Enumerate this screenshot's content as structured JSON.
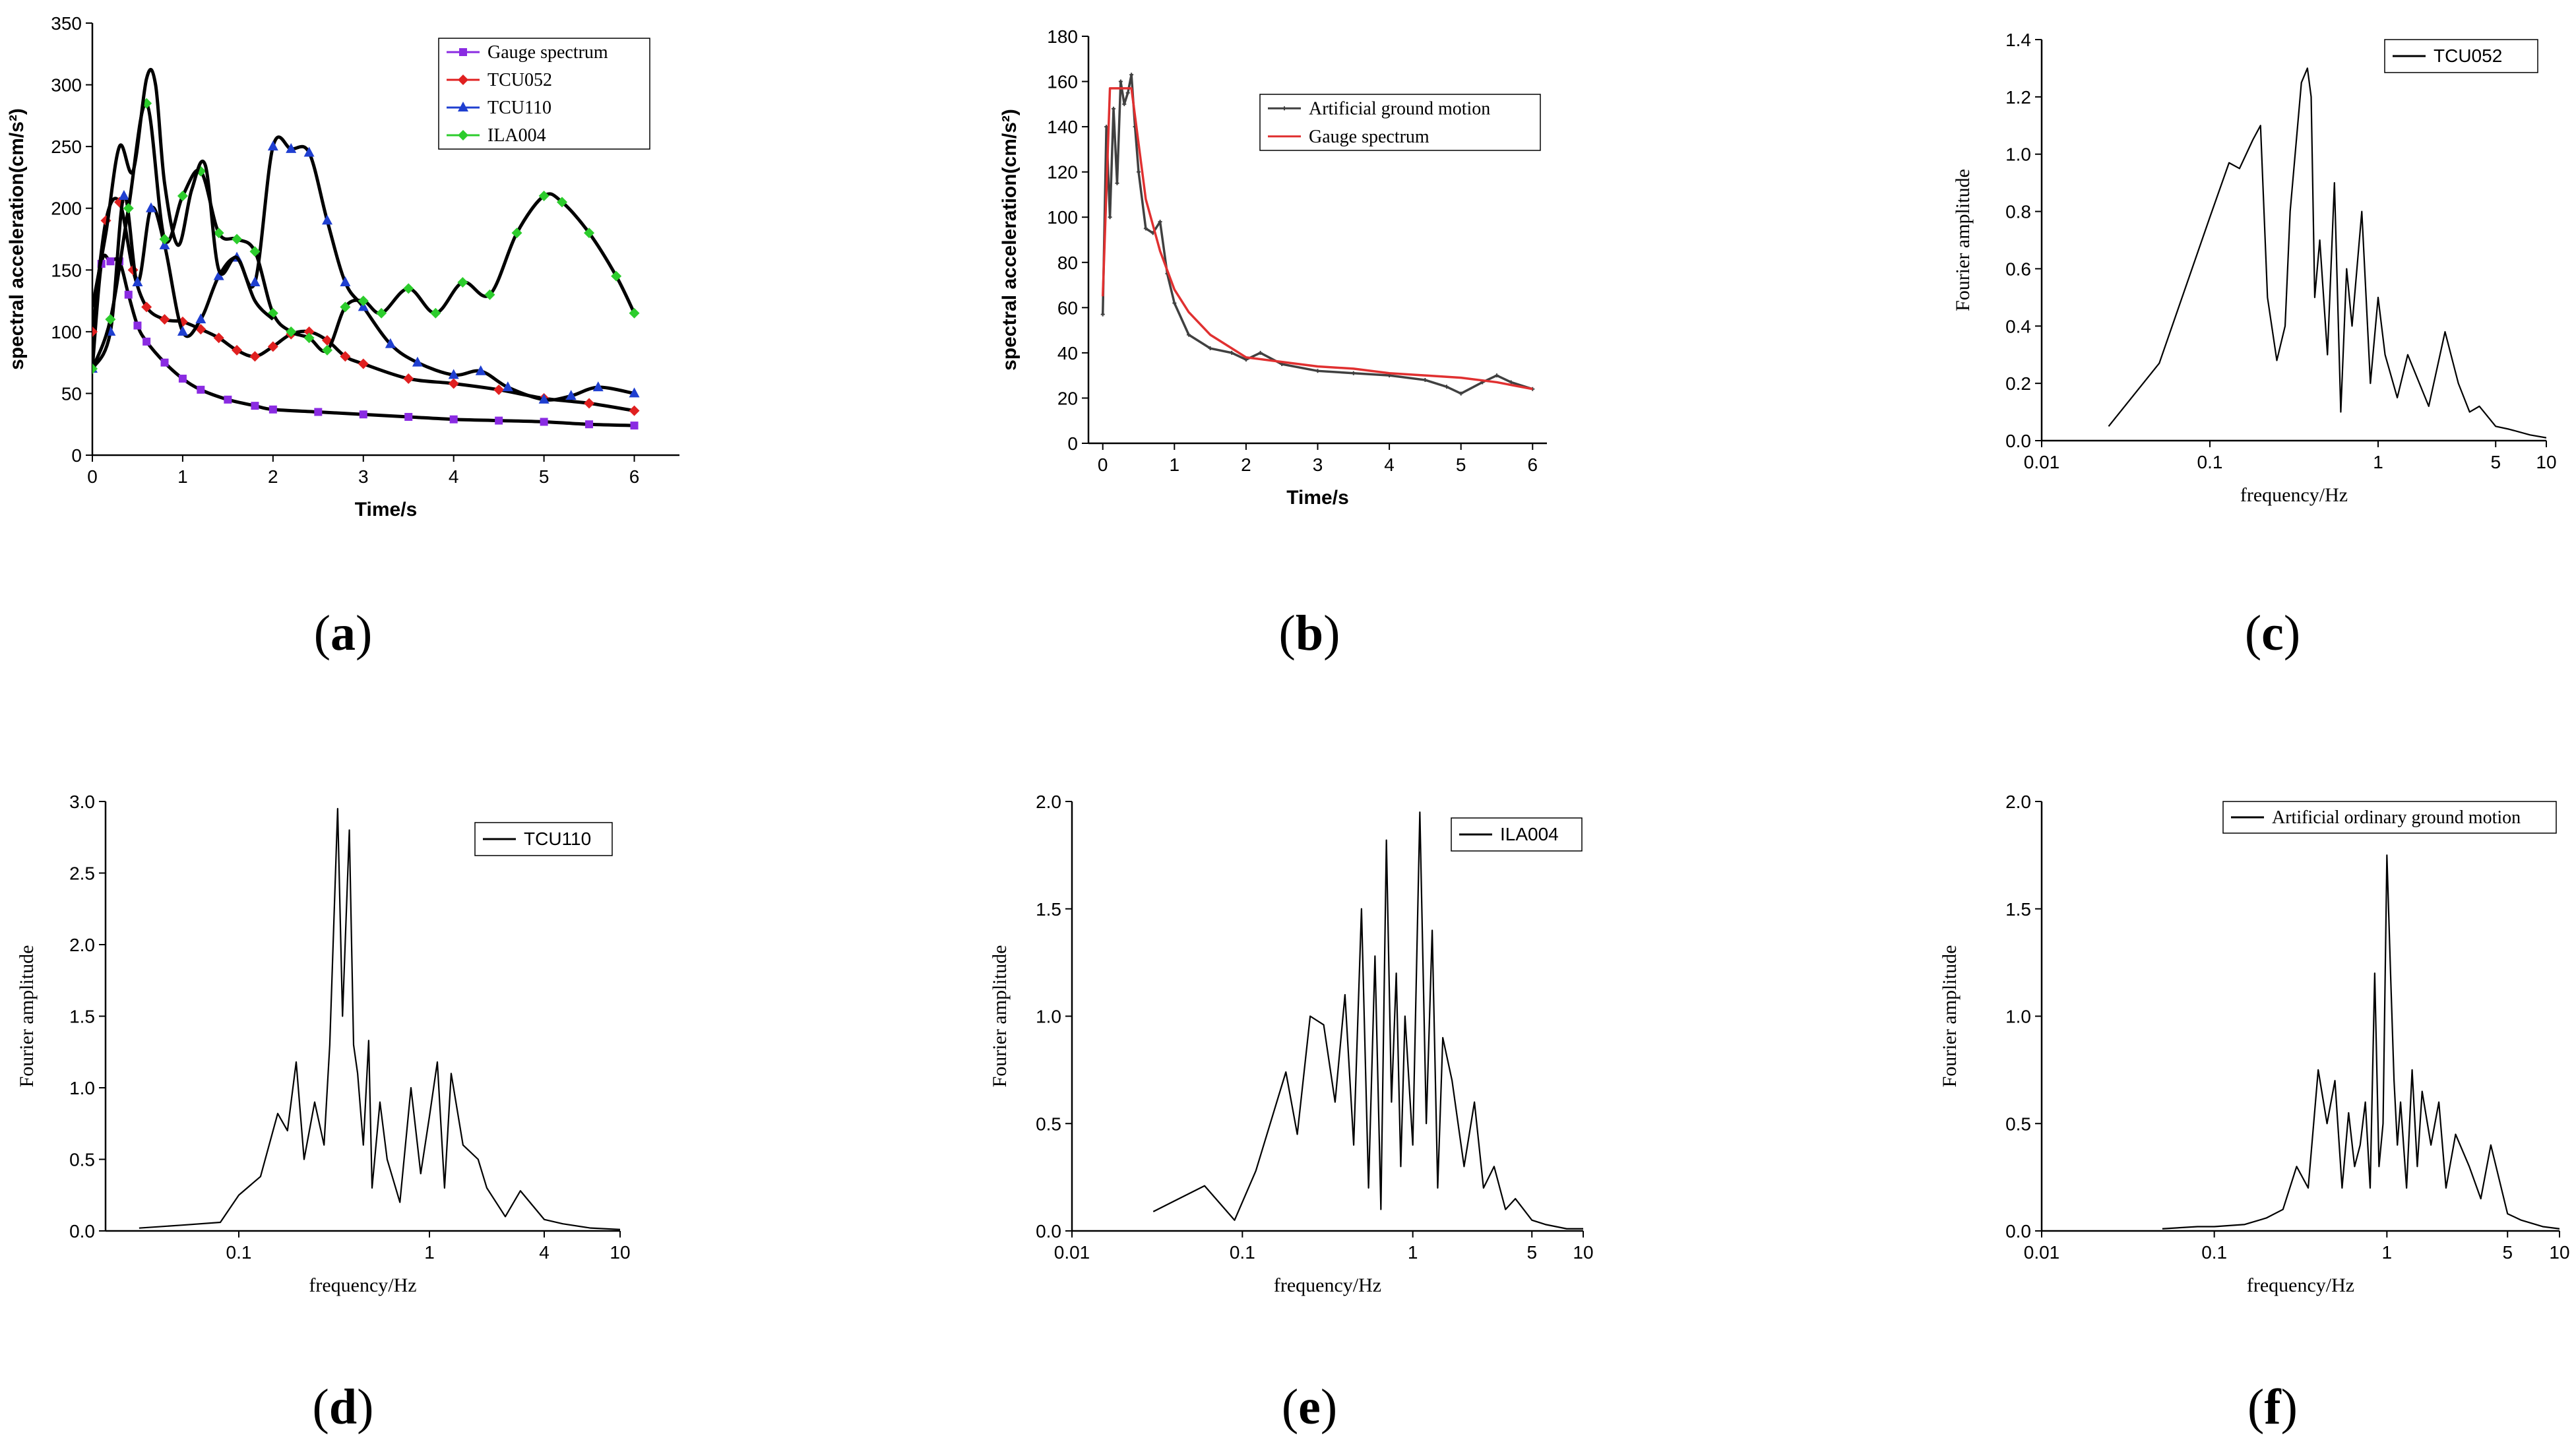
{
  "figure": {
    "panel_labels": [
      {
        "open": "(",
        "letter": "a",
        "close": ")"
      },
      {
        "open": "(",
        "letter": "b",
        "close": ")"
      },
      {
        "open": "(",
        "letter": "c",
        "close": ")"
      },
      {
        "open": "(",
        "letter": "d",
        "close": ")"
      },
      {
        "open": "(",
        "letter": "e",
        "close": ")"
      },
      {
        "open": "(",
        "letter": "f",
        "close": ")"
      }
    ]
  },
  "chart_data": [
    {
      "id": "a",
      "type": "line",
      "xlabel": "Time/s",
      "ylabel": "spectral acceleration(cm/s²)",
      "xlim": [
        0,
        6.5
      ],
      "ylim": [
        0,
        350
      ],
      "xticks": [
        0,
        1,
        2,
        3,
        4,
        5,
        6
      ],
      "yticks": [
        0,
        50,
        100,
        150,
        200,
        250,
        300,
        350
      ],
      "legend_position": "top-right",
      "series": [
        {
          "name": "Gauge spectrum",
          "color": "#8a2be2",
          "marker": "square",
          "x": [
            0,
            0.1,
            0.2,
            0.3,
            0.4,
            0.5,
            0.6,
            0.8,
            1,
            1.2,
            1.5,
            1.8,
            2,
            2.5,
            3,
            3.5,
            4,
            4.5,
            5,
            5.5,
            6
          ],
          "y": [
            70,
            155,
            157,
            157,
            130,
            105,
            92,
            75,
            62,
            53,
            45,
            40,
            37,
            35,
            33,
            31,
            29,
            28,
            27,
            25,
            24
          ]
        },
        {
          "name": "TCU052",
          "color": "#e02020",
          "marker": "diamond",
          "x": [
            0,
            0.15,
            0.3,
            0.45,
            0.6,
            0.8,
            1,
            1.2,
            1.4,
            1.6,
            1.8,
            2,
            2.2,
            2.4,
            2.6,
            2.8,
            3,
            3.5,
            4,
            4.5,
            5,
            5.5,
            6
          ],
          "y": [
            100,
            190,
            205,
            150,
            120,
            110,
            108,
            102,
            95,
            85,
            80,
            88,
            98,
            100,
            93,
            80,
            74,
            62,
            58,
            53,
            46,
            42,
            36
          ]
        },
        {
          "name": "TCU110",
          "color": "#1f3fd0",
          "marker": "triangle",
          "x": [
            0,
            0.2,
            0.35,
            0.5,
            0.65,
            0.8,
            1,
            1.2,
            1.4,
            1.6,
            1.8,
            2,
            2.2,
            2.4,
            2.6,
            2.8,
            3,
            3.3,
            3.6,
            4,
            4.3,
            4.6,
            5,
            5.3,
            5.6,
            6
          ],
          "y": [
            70,
            100,
            210,
            140,
            200,
            170,
            100,
            110,
            145,
            160,
            140,
            250,
            248,
            245,
            190,
            140,
            120,
            90,
            75,
            65,
            68,
            55,
            45,
            48,
            55,
            50
          ]
        },
        {
          "name": "ILA004",
          "color": "#2ccc2c",
          "marker": "diamond",
          "x": [
            0,
            0.2,
            0.4,
            0.6,
            0.8,
            1,
            1.2,
            1.4,
            1.6,
            1.8,
            2,
            2.2,
            2.4,
            2.6,
            2.8,
            3,
            3.2,
            3.5,
            3.8,
            4.1,
            4.4,
            4.7,
            5,
            5.2,
            5.5,
            5.8,
            6
          ],
          "y": [
            70,
            110,
            200,
            285,
            175,
            210,
            230,
            180,
            175,
            165,
            115,
            100,
            95,
            85,
            120,
            125,
            115,
            135,
            115,
            140,
            130,
            180,
            210,
            205,
            180,
            145,
            115
          ]
        },
        {
          "name": "",
          "color": "#000000",
          "marker": "none",
          "x": [
            0,
            0.15,
            0.3,
            0.45,
            0.6,
            0.7,
            0.8,
            0.95,
            1.1,
            1.25,
            1.4,
            1.6,
            1.8,
            2
          ],
          "y": [
            120,
            180,
            250,
            230,
            305,
            300,
            220,
            170,
            215,
            235,
            150,
            160,
            125,
            110
          ]
        }
      ]
    },
    {
      "id": "b",
      "type": "line",
      "xlabel": "Time/s",
      "ylabel": "spectral acceleration(cm/s²)",
      "xlim": [
        -0.2,
        6.2
      ],
      "ylim": [
        0,
        180
      ],
      "xticks": [
        0,
        1,
        2,
        3,
        4,
        5,
        6
      ],
      "yticks": [
        0,
        20,
        40,
        60,
        80,
        100,
        120,
        140,
        160,
        180
      ],
      "legend_position": "top-right",
      "series": [
        {
          "name": "Artificial ground motion",
          "color": "#404040",
          "marker": "small-cross",
          "x": [
            0,
            0.05,
            0.1,
            0.15,
            0.2,
            0.25,
            0.3,
            0.35,
            0.4,
            0.45,
            0.5,
            0.6,
            0.7,
            0.8,
            0.9,
            1,
            1.2,
            1.5,
            1.8,
            2,
            2.2,
            2.5,
            3,
            3.5,
            4,
            4.5,
            4.8,
            5,
            5.3,
            5.5,
            5.7,
            6
          ],
          "y": [
            57,
            140,
            100,
            148,
            115,
            160,
            150,
            155,
            163,
            140,
            120,
            95,
            93,
            98,
            75,
            62,
            48,
            42,
            40,
            37,
            40,
            35,
            32,
            31,
            30,
            28,
            25,
            22,
            27,
            30,
            27,
            24
          ]
        },
        {
          "name": "Gauge spectrum",
          "color": "#e03030",
          "marker": "none",
          "x": [
            0,
            0.1,
            0.4,
            0.6,
            0.8,
            1,
            1.2,
            1.5,
            1.8,
            2,
            2.5,
            3,
            3.5,
            4,
            4.5,
            5,
            5.5,
            6
          ],
          "y": [
            65,
            157,
            157,
            108,
            85,
            68,
            58,
            48,
            42,
            38,
            36,
            34,
            33,
            31,
            30,
            29,
            27,
            24
          ]
        }
      ]
    },
    {
      "id": "c",
      "type": "line",
      "xscale": "log",
      "xlabel": "frequency/Hz",
      "ylabel": "Fourier amplitude",
      "xlim": [
        0.01,
        10
      ],
      "ylim": [
        0,
        1.4
      ],
      "xticks": [
        0.01,
        0.1,
        1,
        5,
        10
      ],
      "xtick_labels": [
        "0.01",
        "0.1",
        "1",
        "5",
        "10"
      ],
      "yticks": [
        0.0,
        0.2,
        0.4,
        0.6,
        0.8,
        1.0,
        1.2,
        1.4
      ],
      "ytick_labels": [
        "0.0",
        "0.2",
        "0.4",
        "0.6",
        "0.8",
        "1.0",
        "1.2",
        "1.4"
      ],
      "legend_position": "top-right",
      "series": [
        {
          "name": "TCU052",
          "color": "#000000",
          "marker": "none",
          "x": [
            0.025,
            0.05,
            0.1,
            0.13,
            0.15,
            0.18,
            0.2,
            0.22,
            0.25,
            0.28,
            0.3,
            0.35,
            0.38,
            0.4,
            0.42,
            0.45,
            0.5,
            0.55,
            0.6,
            0.65,
            0.7,
            0.8,
            0.9,
            1,
            1.1,
            1.3,
            1.5,
            2,
            2.5,
            3,
            3.5,
            4,
            5,
            6,
            8,
            10
          ],
          "y": [
            0.05,
            0.27,
            0.78,
            0.97,
            0.95,
            1.05,
            1.1,
            0.5,
            0.28,
            0.4,
            0.8,
            1.25,
            1.3,
            1.2,
            0.5,
            0.7,
            0.3,
            0.9,
            0.1,
            0.6,
            0.4,
            0.8,
            0.2,
            0.5,
            0.3,
            0.15,
            0.3,
            0.12,
            0.38,
            0.2,
            0.1,
            0.12,
            0.05,
            0.04,
            0.02,
            0.01
          ]
        }
      ]
    },
    {
      "id": "d",
      "type": "line",
      "xscale": "log",
      "xlabel": "frequency/Hz",
      "ylabel": "Fourier amplitude",
      "xlim": [
        0.02,
        10
      ],
      "ylim": [
        0,
        3.0
      ],
      "xticks": [
        0.1,
        1,
        4,
        10
      ],
      "xtick_labels": [
        "0.1",
        "1",
        "4",
        "10"
      ],
      "yticks": [
        0.0,
        0.5,
        1.0,
        1.5,
        2.0,
        2.5,
        3.0
      ],
      "ytick_labels": [
        "0.0",
        "0.5",
        "1.0",
        "1.5",
        "2.0",
        "2.5",
        "3.0"
      ],
      "legend_position": "top-right",
      "series": [
        {
          "name": "TCU110",
          "color": "#000000",
          "marker": "none",
          "x": [
            0.03,
            0.05,
            0.08,
            0.1,
            0.13,
            0.16,
            0.18,
            0.2,
            0.22,
            0.25,
            0.28,
            0.3,
            0.33,
            0.35,
            0.38,
            0.4,
            0.42,
            0.45,
            0.48,
            0.5,
            0.55,
            0.6,
            0.7,
            0.8,
            0.9,
            1,
            1.1,
            1.2,
            1.3,
            1.5,
            1.8,
            2,
            2.5,
            3,
            4,
            5,
            7,
            10
          ],
          "y": [
            0.02,
            0.04,
            0.06,
            0.25,
            0.38,
            0.82,
            0.7,
            1.18,
            0.5,
            0.9,
            0.6,
            1.3,
            2.95,
            1.5,
            2.8,
            1.3,
            1.1,
            0.6,
            1.33,
            0.3,
            0.9,
            0.5,
            0.2,
            1.0,
            0.4,
            0.8,
            1.18,
            0.3,
            1.1,
            0.6,
            0.5,
            0.3,
            0.1,
            0.28,
            0.08,
            0.05,
            0.02,
            0.01
          ]
        }
      ]
    },
    {
      "id": "e",
      "type": "line",
      "xscale": "log",
      "xlabel": "frequency/Hz",
      "ylabel": "Fourier amplitude",
      "xlim": [
        0.01,
        10
      ],
      "ylim": [
        0,
        2.0
      ],
      "xticks": [
        0.01,
        0.1,
        1,
        5,
        10
      ],
      "xtick_labels": [
        "0.01",
        "0.1",
        "1",
        "5",
        "10"
      ],
      "yticks": [
        0.0,
        0.5,
        1.0,
        1.5,
        2.0
      ],
      "ytick_labels": [
        "0.0",
        "0.5",
        "1.0",
        "1.5",
        "2.0"
      ],
      "legend_position": "top-right",
      "series": [
        {
          "name": "ILA004",
          "color": "#000000",
          "marker": "none",
          "x": [
            0.03,
            0.06,
            0.09,
            0.12,
            0.18,
            0.21,
            0.25,
            0.3,
            0.35,
            0.4,
            0.45,
            0.5,
            0.55,
            0.6,
            0.65,
            0.7,
            0.75,
            0.8,
            0.85,
            0.9,
            1,
            1.1,
            1.2,
            1.3,
            1.4,
            1.5,
            1.7,
            2,
            2.3,
            2.6,
            3,
            3.5,
            4,
            5,
            6,
            8,
            10
          ],
          "y": [
            0.09,
            0.21,
            0.05,
            0.28,
            0.74,
            0.45,
            1.0,
            0.96,
            0.6,
            1.1,
            0.4,
            1.5,
            0.2,
            1.28,
            0.1,
            1.82,
            0.6,
            1.2,
            0.3,
            1.0,
            0.4,
            1.95,
            0.5,
            1.4,
            0.2,
            0.9,
            0.7,
            0.3,
            0.6,
            0.2,
            0.3,
            0.1,
            0.15,
            0.05,
            0.03,
            0.01,
            0.01
          ]
        }
      ]
    },
    {
      "id": "f",
      "type": "line",
      "xscale": "log",
      "xlabel": "frequency/Hz",
      "ylabel": "Fourier amplitude",
      "xlim": [
        0.01,
        10
      ],
      "ylim": [
        0,
        2.0
      ],
      "xticks": [
        0.01,
        0.1,
        1,
        5,
        10
      ],
      "xtick_labels": [
        "0.01",
        "0.1",
        "1",
        "5",
        "10"
      ],
      "yticks": [
        0.0,
        0.5,
        1.0,
        1.5,
        2.0
      ],
      "ytick_labels": [
        "0.0",
        "0.5",
        "1.0",
        "1.5",
        "2.0"
      ],
      "legend_position": "top-right",
      "series": [
        {
          "name": "Artificial ordinary ground motion",
          "color": "#000000",
          "marker": "none",
          "x": [
            0.05,
            0.08,
            0.1,
            0.15,
            0.2,
            0.25,
            0.3,
            0.35,
            0.4,
            0.45,
            0.5,
            0.55,
            0.6,
            0.65,
            0.7,
            0.75,
            0.8,
            0.85,
            0.9,
            0.95,
            1,
            1.05,
            1.1,
            1.15,
            1.2,
            1.3,
            1.4,
            1.5,
            1.6,
            1.8,
            2,
            2.2,
            2.5,
            3,
            3.5,
            4,
            5,
            6,
            8,
            10
          ],
          "y": [
            0.01,
            0.02,
            0.02,
            0.03,
            0.06,
            0.1,
            0.3,
            0.2,
            0.75,
            0.5,
            0.7,
            0.2,
            0.55,
            0.3,
            0.4,
            0.6,
            0.2,
            1.2,
            0.3,
            0.5,
            1.75,
            1.2,
            0.7,
            0.4,
            0.6,
            0.2,
            0.75,
            0.3,
            0.65,
            0.4,
            0.6,
            0.2,
            0.45,
            0.3,
            0.15,
            0.4,
            0.08,
            0.05,
            0.02,
            0.01
          ]
        }
      ]
    }
  ]
}
